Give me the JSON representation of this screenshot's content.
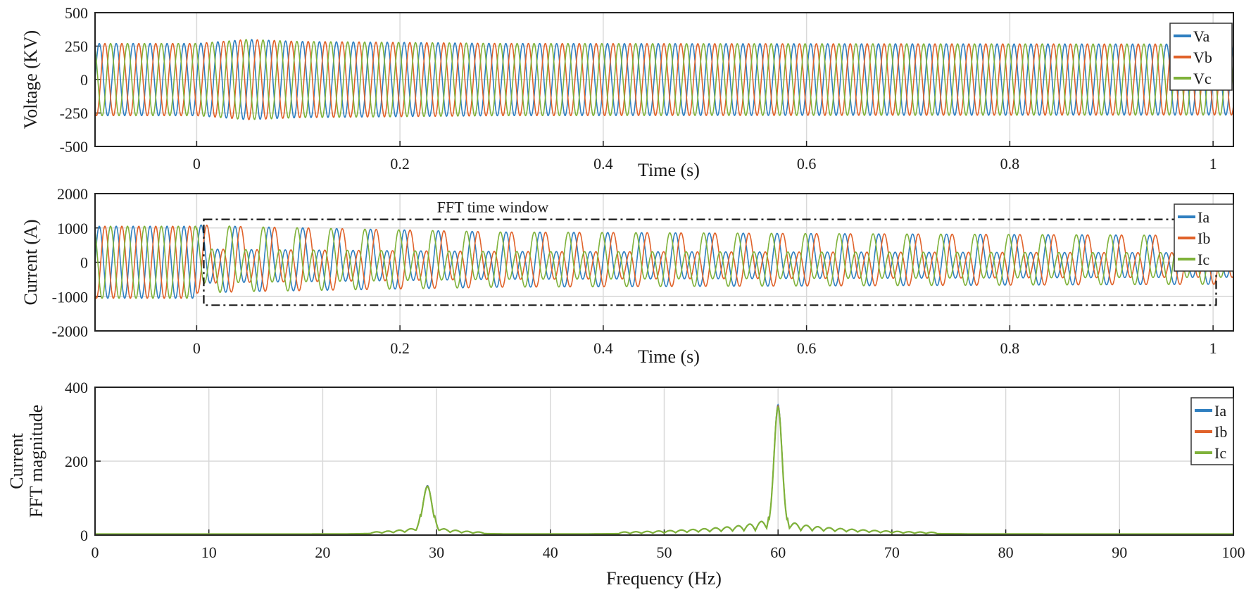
{
  "chart_data": [
    {
      "type": "line",
      "xlabel": "Time (s)",
      "ylabel": "Voltage (KV)",
      "xlim": [
        -0.1,
        1.02
      ],
      "ylim": [
        -500,
        500
      ],
      "xticks": [
        0,
        0.2,
        0.4,
        0.6,
        0.8,
        1
      ],
      "yticks": [
        -500,
        -250,
        0,
        250,
        500
      ],
      "xtick_labels": [
        "0",
        "0.2",
        "0.4",
        "0.6",
        "0.8",
        "1"
      ],
      "ytick_labels": [
        "-500",
        "-250",
        "0",
        "250",
        "500"
      ],
      "grid": true,
      "legend": "top-right",
      "signal": {
        "frequency_hz": 60,
        "envelope": [
          [
            -0.1,
            270
          ],
          [
            0.0,
            270
          ],
          [
            0.05,
            300
          ],
          [
            0.1,
            285
          ],
          [
            0.3,
            270
          ],
          [
            1.02,
            265
          ]
        ]
      },
      "series": [
        {
          "name": "Va",
          "phase_deg": 0,
          "amplitude": 270
        },
        {
          "name": "Vb",
          "phase_deg": -120,
          "amplitude": 270
        },
        {
          "name": "Vc",
          "phase_deg": 120,
          "amplitude": 270
        }
      ]
    },
    {
      "type": "line",
      "xlabel": "Time (s)",
      "ylabel": "Current (A)",
      "xlim": [
        -0.1,
        1.02
      ],
      "ylim": [
        -2000,
        2000
      ],
      "xticks": [
        0,
        0.2,
        0.4,
        0.6,
        0.8,
        1
      ],
      "yticks": [
        -2000,
        -1000,
        0,
        1000,
        2000
      ],
      "xtick_labels": [
        "0",
        "0.2",
        "0.4",
        "0.6",
        "0.8",
        "1"
      ],
      "ytick_labels": [
        "-2000",
        "-1000",
        "0",
        "1000",
        "2000"
      ],
      "grid": true,
      "legend": "top-right",
      "annotation": {
        "text": "FFT time window",
        "t_start": 0.007,
        "t_end": 1.003,
        "y_range": [
          -1250,
          1250
        ]
      },
      "signal": {
        "frequency_hz": 60,
        "subsync_frequency_hz": 30,
        "pre_event_amplitude": 1050,
        "event_time": 0.0,
        "envelope": [
          [
            0.0,
            1050
          ],
          [
            0.05,
            1000
          ],
          [
            0.3,
            850
          ],
          [
            1.02,
            750
          ]
        ],
        "subsync_ratio": 0.3
      },
      "series": [
        {
          "name": "Ia",
          "phase_deg": 0
        },
        {
          "name": "Ib",
          "phase_deg": -120
        },
        {
          "name": "Ic",
          "phase_deg": 120
        }
      ]
    },
    {
      "type": "line",
      "xlabel": "Frequency (Hz)",
      "ylabel": "Current FFT magnitude",
      "ylabel_lines": [
        "Current",
        "FFT magnitude"
      ],
      "xlim": [
        0,
        100
      ],
      "ylim": [
        0,
        400
      ],
      "xticks": [
        0,
        10,
        20,
        30,
        40,
        50,
        60,
        70,
        80,
        90,
        100
      ],
      "yticks": [
        0,
        200,
        400
      ],
      "xtick_labels": [
        "0",
        "10",
        "20",
        "30",
        "40",
        "50",
        "60",
        "70",
        "80",
        "90",
        "100"
      ],
      "ytick_labels": [
        "0",
        "200",
        "400"
      ],
      "grid": true,
      "legend": "top-right",
      "peaks": [
        {
          "x": 29.2,
          "y": 125
        },
        {
          "x": 60,
          "y": 340
        }
      ],
      "series": [
        {
          "name": "Ia"
        },
        {
          "name": "Ib"
        },
        {
          "name": "Ic"
        }
      ]
    }
  ],
  "colors": {
    "series": [
      "#2f7fc0",
      "#e0622a",
      "#7fb23a"
    ],
    "axis": "#222222",
    "grid": "#d9d9d9",
    "window": "#111111"
  }
}
